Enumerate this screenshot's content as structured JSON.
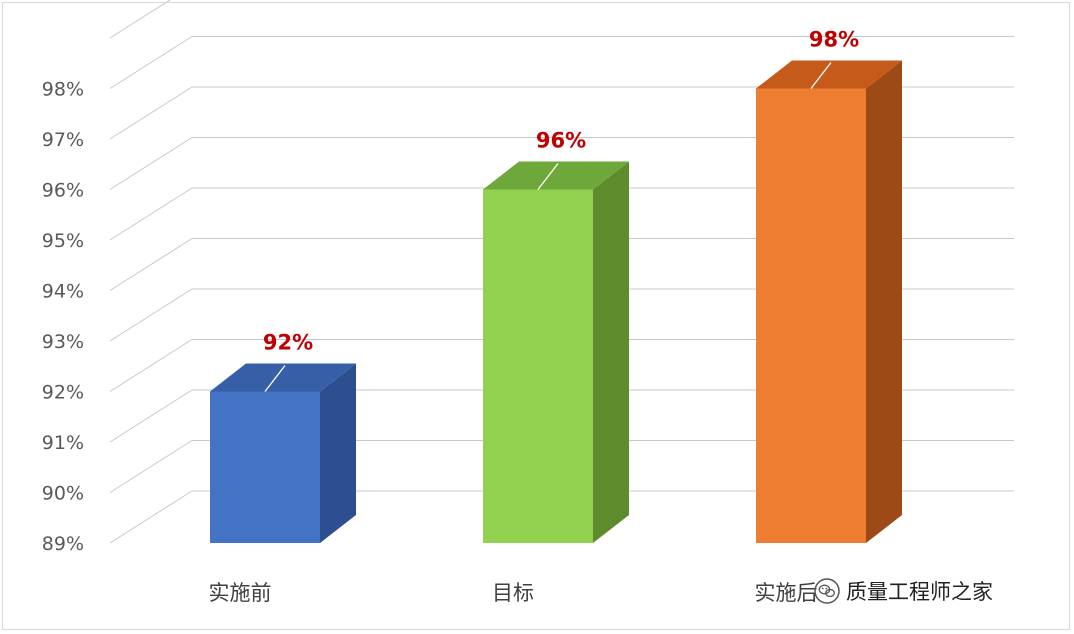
{
  "chart_data": {
    "type": "bar",
    "style": "3d-column",
    "categories": [
      "实施前",
      "目标",
      "实施后"
    ],
    "values": [
      92,
      96,
      98
    ],
    "data_labels": [
      "92%",
      "96%",
      "98%"
    ],
    "ylim": [
      89,
      98
    ],
    "yticks": [
      "89%",
      "90%",
      "91%",
      "92%",
      "93%",
      "94%",
      "95%",
      "96%",
      "97%",
      "98%"
    ],
    "grid": true,
    "legend": "none",
    "title": "",
    "xlabel": "",
    "ylabel": ""
  },
  "colors": {
    "bars": [
      {
        "front": "#4472c4",
        "side": "#2e4f8f",
        "top": "#365fa8"
      },
      {
        "front": "#92d050",
        "side": "#5e8c2c",
        "top": "#6fa83a"
      },
      {
        "front": "#ed7d31",
        "side": "#9e4a17",
        "top": "#c55a1a"
      }
    ],
    "grid": "#c8c8c8",
    "tick_text": "#595959",
    "data_label": "#c00000",
    "category_text": "#404040"
  },
  "watermark": {
    "icon": "wechat-icon",
    "text": "质量工程师之家"
  }
}
